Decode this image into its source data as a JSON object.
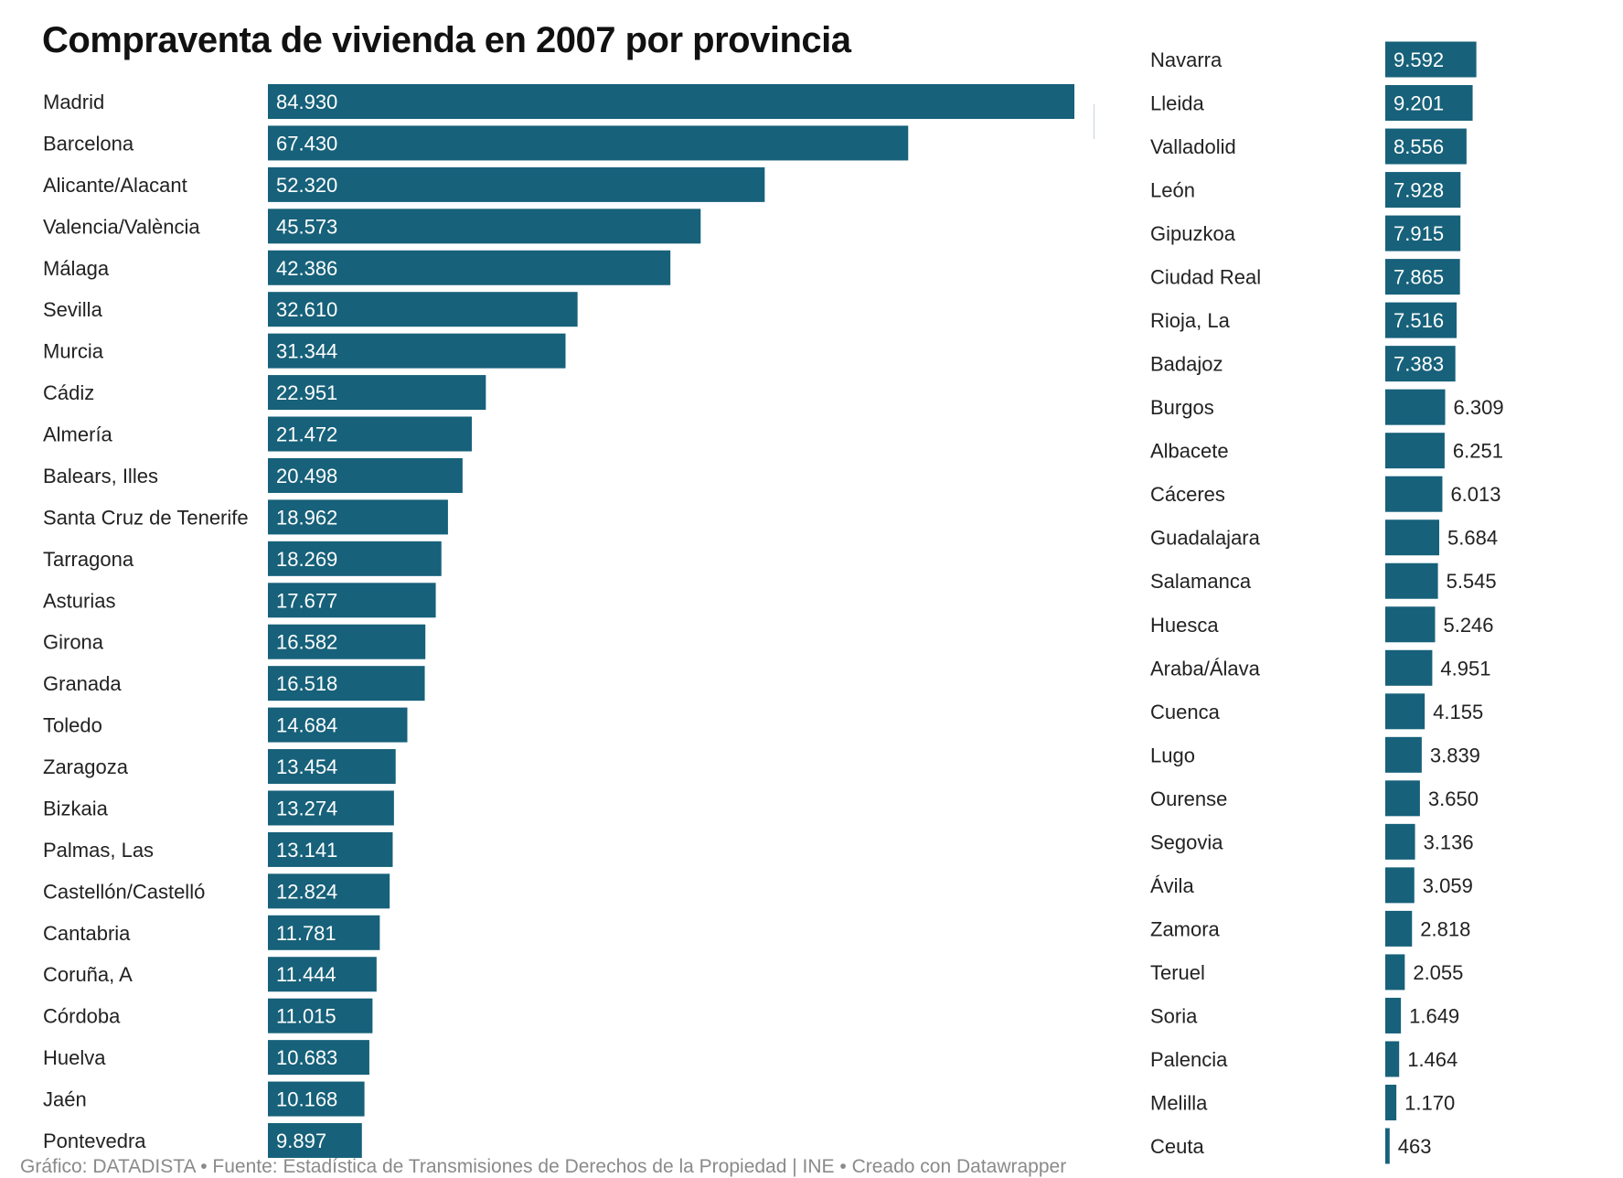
{
  "title": "Compraventa de vivienda en 2007 por provincia",
  "footer": "Gráfico: DATADISTA • Fuente: Estadística de Transmisiones de Derechos de la Propiedad | INE • Creado con Datawrapper",
  "colors": {
    "bar": "#17617a",
    "label_inside": "#ffffff",
    "label_outside": "#222222",
    "category_text": "#222222"
  },
  "chart_data": {
    "type": "bar",
    "orientation": "horizontal",
    "title": "Compraventa de vivienda en 2007 por provincia",
    "xlim": [
      0,
      84930
    ],
    "series": [
      {
        "values": [
          84930,
          67430,
          52320,
          45573,
          42386,
          32610,
          31344,
          22951,
          21472,
          20498,
          18962,
          18269,
          17677,
          16582,
          16518,
          14684,
          13454,
          13274,
          13141,
          12824,
          11781,
          11444,
          11015,
          10683,
          10168,
          9897,
          9592,
          9201,
          8556,
          7928,
          7915,
          7865,
          7516,
          7383,
          6309,
          6251,
          6013,
          5684,
          5545,
          5246,
          4951,
          4155,
          3839,
          3650,
          3136,
          3059,
          2818,
          2055,
          1649,
          1464,
          1170,
          463
        ]
      }
    ],
    "categories": [
      "Madrid",
      "Barcelona",
      "Alicante/Alacant",
      "Valencia/València",
      "Málaga",
      "Sevilla",
      "Murcia",
      "Cádiz",
      "Almería",
      "Balears, Illes",
      "Santa Cruz de Tenerife",
      "Tarragona",
      "Asturias",
      "Girona",
      "Granada",
      "Toledo",
      "Zaragoza",
      "Bizkaia",
      "Palmas, Las",
      "Castellón/Castelló",
      "Cantabria",
      "Coruña, A",
      "Córdoba",
      "Huelva",
      "Jaén",
      "Pontevedra",
      "Navarra",
      "Lleida",
      "Valladolid",
      "León",
      "Gipuzkoa",
      "Ciudad Real",
      "Rioja, La",
      "Badajoz",
      "Burgos",
      "Albacete",
      "Cáceres",
      "Guadalajara",
      "Salamanca",
      "Huesca",
      "Araba/Álava",
      "Cuenca",
      "Lugo",
      "Ourense",
      "Segovia",
      "Ávila",
      "Zamora",
      "Teruel",
      "Soria",
      "Palencia",
      "Melilla",
      "Ceuta"
    ],
    "value_labels": [
      "84.930",
      "67.430",
      "52.320",
      "45.573",
      "42.386",
      "32.610",
      "31.344",
      "22.951",
      "21.472",
      "20.498",
      "18.962",
      "18.269",
      "17.677",
      "16.582",
      "16.518",
      "14.684",
      "13.454",
      "13.274",
      "13.141",
      "12.824",
      "11.781",
      "11.444",
      "11.015",
      "10.683",
      "10.168",
      "9.897",
      "9.592",
      "9.201",
      "8.556",
      "7.928",
      "7.915",
      "7.865",
      "7.516",
      "7.383",
      "6.309",
      "6.251",
      "6.013",
      "5.684",
      "5.545",
      "5.246",
      "4.951",
      "4.155",
      "3.839",
      "3.650",
      "3.136",
      "3.059",
      "2.818",
      "2.055",
      "1.649",
      "1.464",
      "1.170",
      "463"
    ],
    "columns": 2,
    "legend": "none",
    "grid": false
  }
}
